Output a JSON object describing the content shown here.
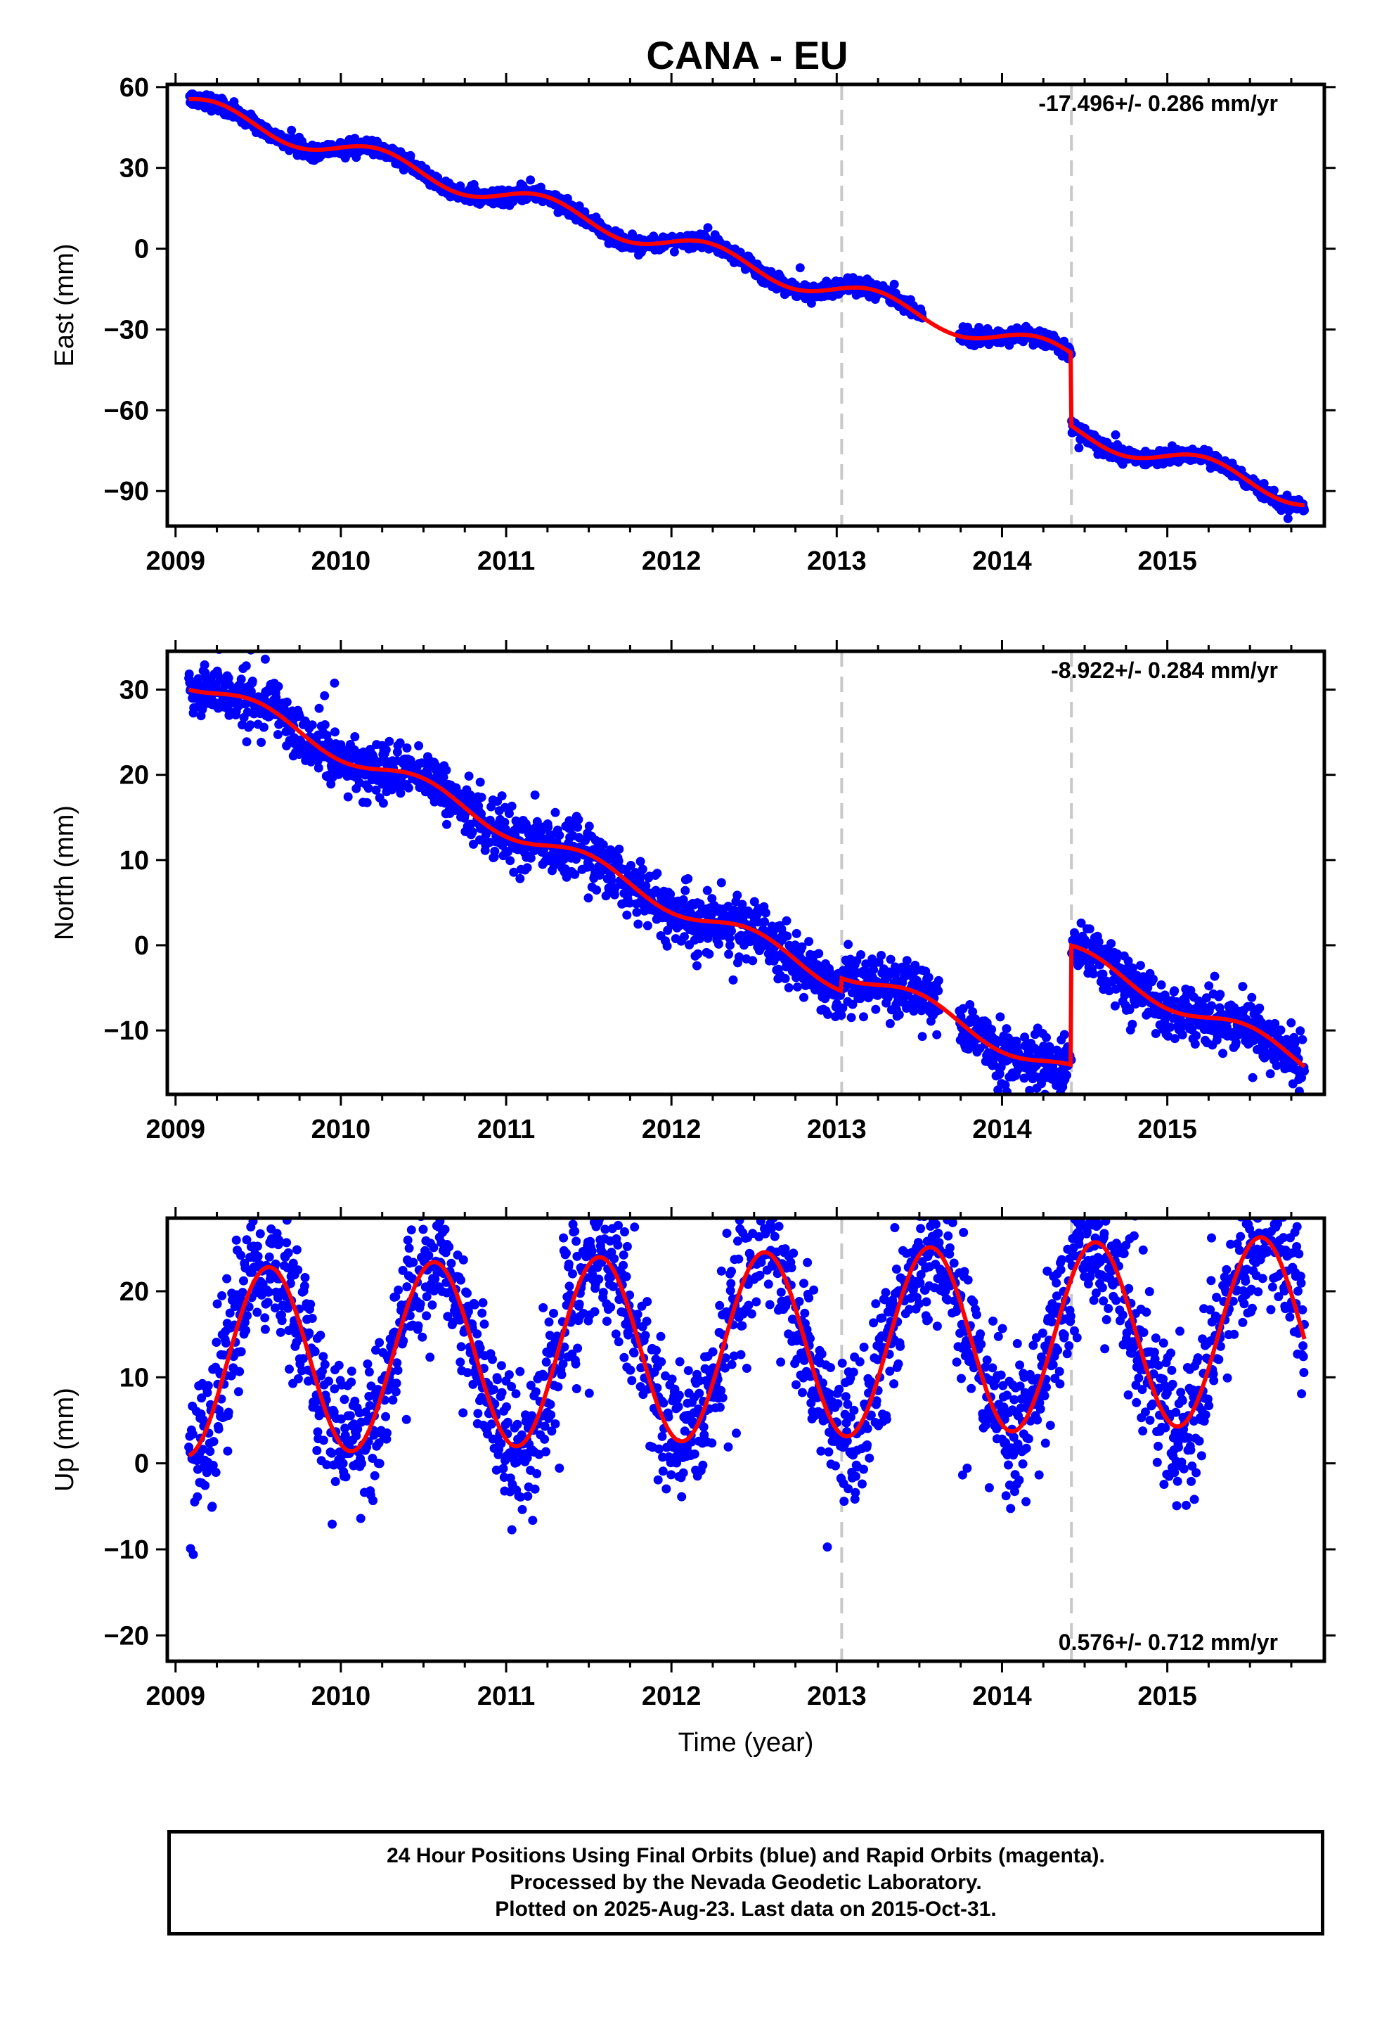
{
  "title": "CANA - EU",
  "footer": {
    "line1": "24 Hour Positions Using Final Orbits (blue) and Rapid Orbits (magenta).",
    "line2": "Processed by the Nevada Geodetic Laboratory.",
    "line3": "Plotted on 2025-Aug-23. Last data on 2015-Oct-31."
  },
  "colors": {
    "points": "#0000ff",
    "model": "#ff0000",
    "event_lines": "#c8c8c8",
    "frame": "#000000"
  },
  "chart_data": [
    {
      "type": "scatter",
      "component": "East",
      "ylabel": "East (mm)",
      "xlabel": "",
      "xlim": [
        2008.95,
        2015.95
      ],
      "ylim": [
        -103,
        61
      ],
      "xticks": [
        2009,
        2010,
        2011,
        2012,
        2013,
        2014,
        2015
      ],
      "yticks": [
        60,
        30,
        0,
        -30,
        -60,
        -90
      ],
      "ytick_labels": [
        "60",
        "30",
        "0",
        "−30",
        "−60",
        "−90"
      ],
      "rate_label": "-17.496+/- 0.286 mm/yr",
      "rate_position": "top-right",
      "event_lines": [
        2013.03,
        2014.42
      ],
      "model": {
        "t0": 2009.08,
        "v0": 55.5,
        "rate": -17.496,
        "season_s": 4.0,
        "season_c": 0.5,
        "semi_s": 0.0,
        "semi_c": 0.0,
        "offsets": [
          {
            "t": 2014.42,
            "size": -27.0
          }
        ]
      },
      "scatter_sigma": 1.4,
      "gaps": [
        [
          2013.52,
          2013.74
        ]
      ]
    },
    {
      "type": "scatter",
      "component": "North",
      "ylabel": "North (mm)",
      "xlabel": "",
      "xlim": [
        2008.95,
        2015.95
      ],
      "ylim": [
        -17.5,
        34.5
      ],
      "xticks": [
        2009,
        2010,
        2011,
        2012,
        2013,
        2014,
        2015
      ],
      "yticks": [
        30,
        20,
        10,
        0,
        -10
      ],
      "ytick_labels": [
        "30",
        "20",
        "10",
        "0",
        "−10"
      ],
      "rate_label": "-8.922+/- 0.284 mm/yr",
      "rate_position": "top-right",
      "event_lines": [
        2013.03,
        2014.42
      ],
      "model": {
        "t0": 2009.08,
        "v0": 30.0,
        "rate": -8.922,
        "season_s": 0.0,
        "season_c": -1.2,
        "semi_s": 0.0,
        "semi_c": 0.0,
        "offsets": [
          {
            "t": 2013.03,
            "size": 1.5
          },
          {
            "t": 2014.42,
            "size": 14.0
          }
        ]
      },
      "scatter_sigma": 1.6,
      "gaps": [
        [
          2013.62,
          2013.74
        ]
      ]
    },
    {
      "type": "scatter",
      "component": "Up",
      "ylabel": "Up (mm)",
      "xlabel": "Time (year)",
      "xlim": [
        2008.95,
        2015.95
      ],
      "ylim": [
        -23,
        28.5
      ],
      "xticks": [
        2009,
        2010,
        2011,
        2012,
        2013,
        2014,
        2015
      ],
      "yticks": [
        20,
        10,
        0,
        -10,
        -20
      ],
      "ytick_labels": [
        "20",
        "10",
        "0",
        "−10",
        "−20"
      ],
      "rate_label": "0.576+/- 0.712 mm/yr",
      "rate_position": "bottom-right",
      "event_lines": [
        2013.03,
        2014.42
      ],
      "model": {
        "t0": 2009.08,
        "v0": 0.9,
        "rate": 0.576,
        "season_s": -4.2,
        "season_c": -10.0,
        "semi_s": 0.0,
        "semi_c": 0.0,
        "offsets": []
      },
      "scatter_sigma": 4.0,
      "gaps": []
    }
  ],
  "data_span": [
    2009.08,
    2015.83
  ]
}
